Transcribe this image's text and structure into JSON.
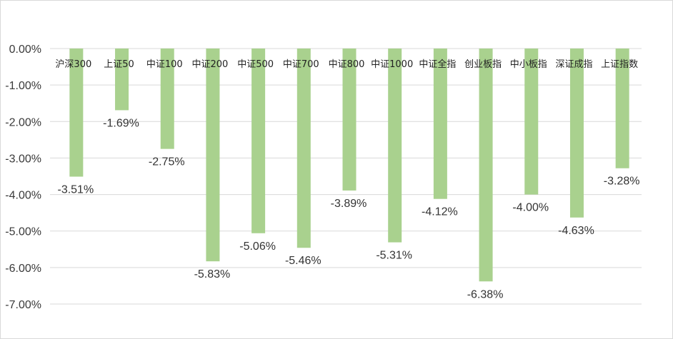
{
  "chart_data": {
    "type": "bar",
    "title": "",
    "xlabel": "",
    "ylabel": "",
    "categories": [
      "沪深300",
      "上证50",
      "中证100",
      "中证200",
      "中证500",
      "中证700",
      "中证800",
      "中证1000",
      "中证全指",
      "创业板指",
      "中小板指",
      "深证成指",
      "上证指数"
    ],
    "values": [
      -3.51,
      -1.69,
      -2.75,
      -5.83,
      -5.06,
      -5.46,
      -3.89,
      -5.31,
      -4.12,
      -6.38,
      -4.0,
      -4.63,
      -3.28
    ],
    "data_labels": [
      "-3.51%",
      "-1.69%",
      "-2.75%",
      "-5.83%",
      "-5.06%",
      "-5.46%",
      "-3.89%",
      "-5.31%",
      "-4.12%",
      "-6.38%",
      "-4.00%",
      "-4.63%",
      "-3.28%"
    ],
    "ylim": [
      -7,
      0
    ],
    "yticks": [
      0,
      -1,
      -2,
      -3,
      -4,
      -5,
      -6,
      -7
    ],
    "ytick_labels": [
      "0.00%",
      "-1.00%",
      "-2.00%",
      "-3.00%",
      "-4.00%",
      "-5.00%",
      "-6.00%",
      "-7.00%"
    ],
    "grid": true,
    "legend": "none",
    "bar_color": "#a9d18e",
    "grid_color": "#d9d9d9"
  }
}
